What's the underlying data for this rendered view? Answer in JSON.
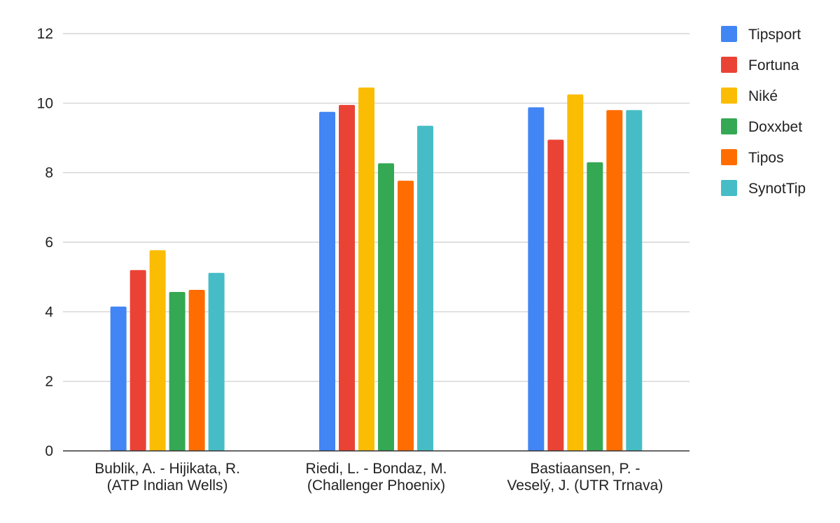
{
  "chart_data": {
    "type": "bar",
    "title": "",
    "xlabel": "",
    "ylabel": "",
    "ylim": [
      0,
      12
    ],
    "yticks": [
      0,
      2,
      4,
      6,
      8,
      10,
      12
    ],
    "grid": true,
    "legend_position": "right",
    "categories": [
      [
        "Bublik, A. - Hijikata, R.",
        "(ATP Indian Wells)"
      ],
      [
        "Riedi, L. - Bondaz, M.",
        "(Challenger Phoenix)"
      ],
      [
        "Bastiaansen, P. -",
        "Veselý, J. (UTR Trnava)"
      ]
    ],
    "series": [
      {
        "name": "Tipsport",
        "color": "#4285F4",
        "values": [
          4.15,
          9.75,
          9.88
        ]
      },
      {
        "name": "Fortuna",
        "color": "#EA4335",
        "values": [
          5.2,
          9.95,
          8.95
        ]
      },
      {
        "name": "Niké",
        "color": "#FBBC04",
        "values": [
          5.77,
          10.45,
          10.25
        ]
      },
      {
        "name": "Doxxbet",
        "color": "#34A853",
        "values": [
          4.57,
          8.27,
          8.3
        ]
      },
      {
        "name": "Tipos",
        "color": "#FF6D01",
        "values": [
          4.63,
          7.77,
          9.8
        ]
      },
      {
        "name": "SynotTip",
        "color": "#46BDC6",
        "values": [
          5.12,
          9.35,
          9.8
        ]
      }
    ]
  }
}
